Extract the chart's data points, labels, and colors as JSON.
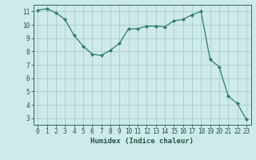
{
  "x": [
    0,
    1,
    2,
    3,
    4,
    5,
    6,
    7,
    8,
    9,
    10,
    11,
    12,
    13,
    14,
    15,
    16,
    17,
    18,
    19,
    20,
    21,
    22,
    23
  ],
  "y": [
    11.1,
    11.2,
    10.9,
    10.4,
    9.2,
    8.4,
    7.8,
    7.7,
    8.1,
    8.6,
    9.7,
    9.7,
    9.9,
    9.9,
    9.85,
    10.3,
    10.4,
    10.75,
    11.0,
    7.4,
    6.85,
    4.65,
    4.1,
    2.9
  ],
  "line_color": "#2e7d6e",
  "marker": "D",
  "marker_size": 2.0,
  "bg_color": "#ceeaea",
  "grid_color": "#aacccc",
  "spine_color": "#336666",
  "tick_color": "#225544",
  "xlabel": "Humidex (Indice chaleur)",
  "xlim": [
    -0.5,
    23.5
  ],
  "ylim": [
    2.5,
    11.5
  ],
  "yticks": [
    3,
    4,
    5,
    6,
    7,
    8,
    9,
    10,
    11
  ],
  "xticks": [
    0,
    1,
    2,
    3,
    4,
    5,
    6,
    7,
    8,
    9,
    10,
    11,
    12,
    13,
    14,
    15,
    16,
    17,
    18,
    19,
    20,
    21,
    22,
    23
  ],
  "tick_font_size": 5.5,
  "label_font_size": 6.5
}
